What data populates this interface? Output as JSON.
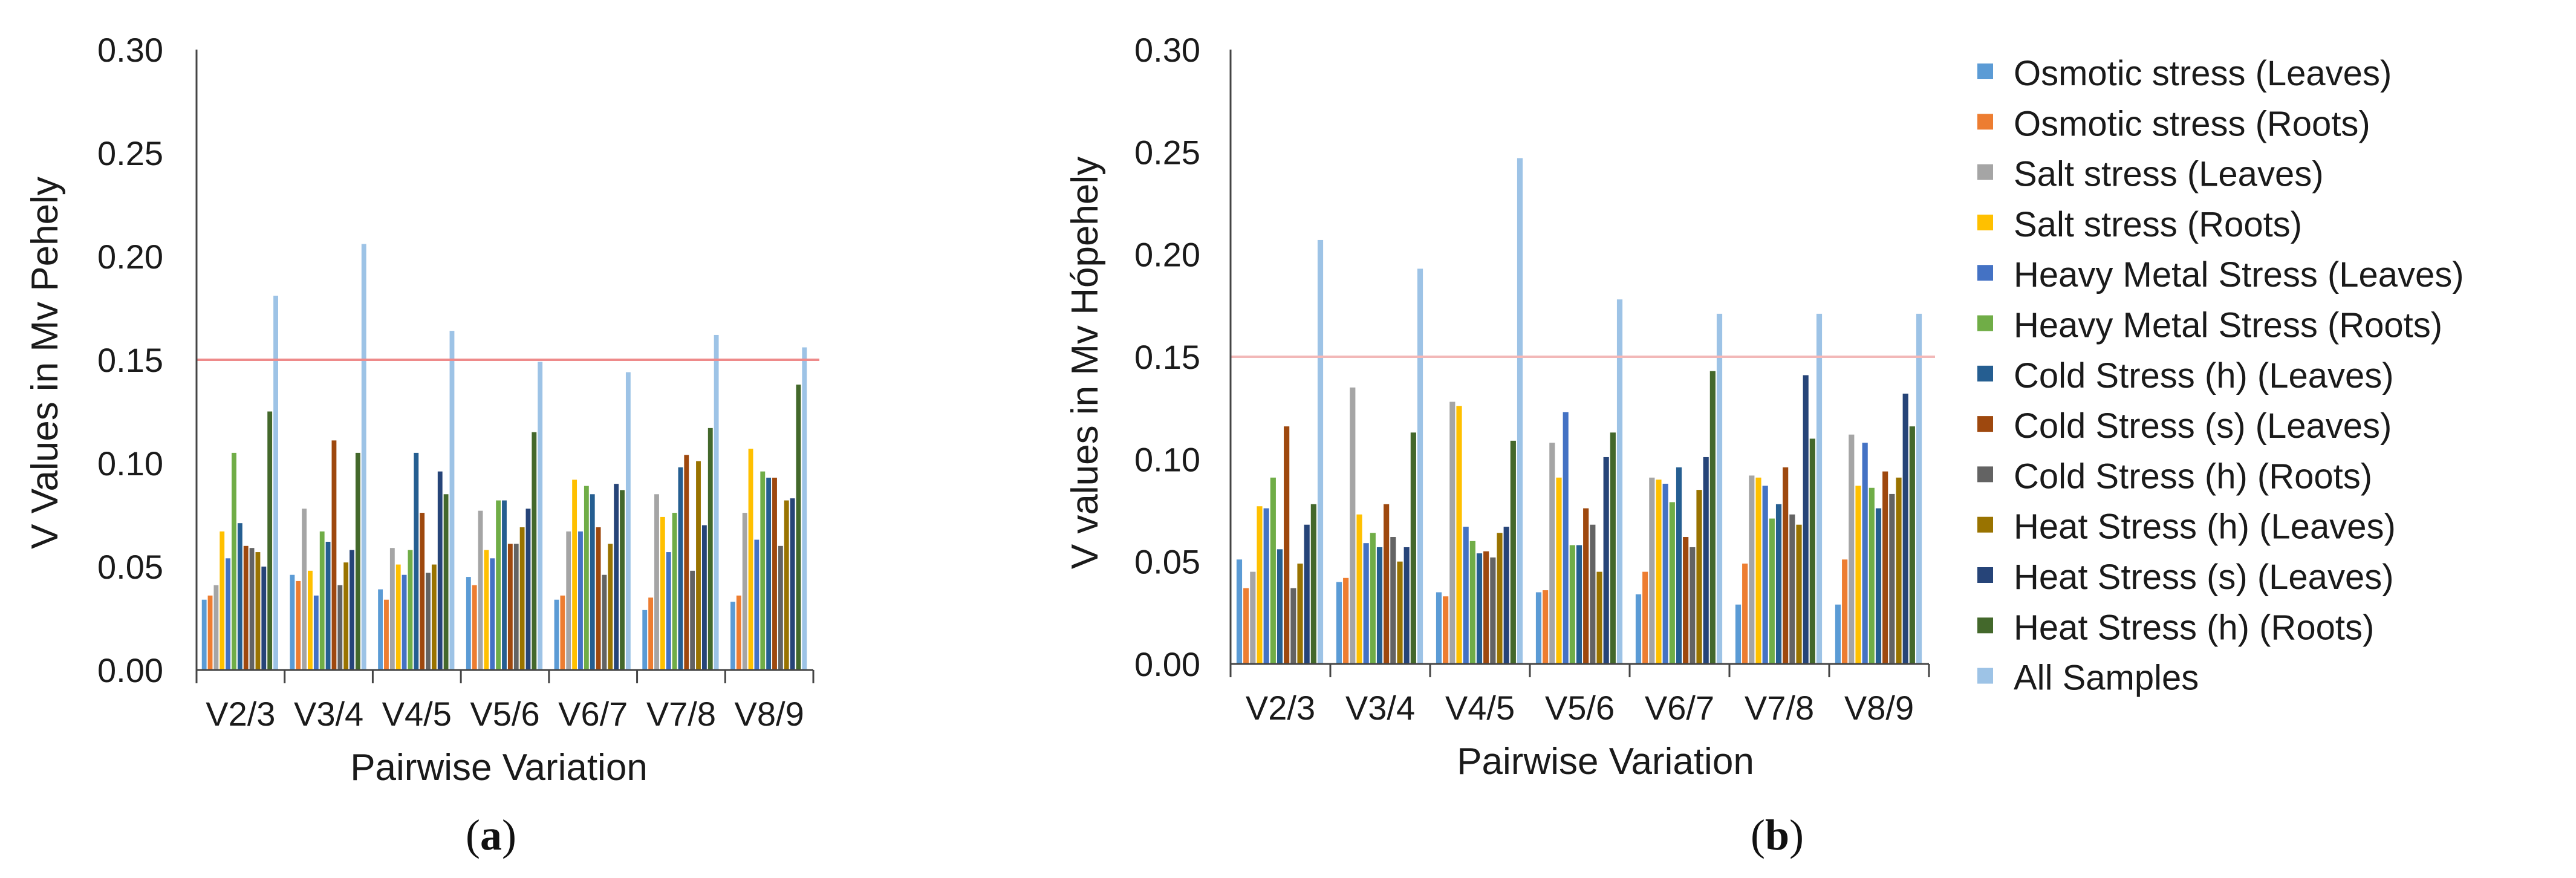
{
  "chart_data": [
    {
      "type": "bar",
      "panel_label": "a",
      "title": "",
      "xlabel": "Pairwise Variation",
      "ylabel": "V Values in Mv Pehely",
      "ylim": [
        0,
        0.3
      ],
      "yticks": [
        "0.00",
        "0.05",
        "0.10",
        "0.15",
        "0.20",
        "0.25",
        "0.30"
      ],
      "ytick_values": [
        0,
        0.05,
        0.1,
        0.15,
        0.2,
        0.25,
        0.3
      ],
      "threshold": 0.15,
      "threshold_color": "#ee8a8a",
      "grid": false,
      "categories": [
        "V2/3",
        "V3/4",
        "V4/5",
        "V5/6",
        "V6/7",
        "V7/8",
        "V8/9"
      ],
      "series": [
        {
          "name": "Osmotic stress (Leaves)",
          "color": "#5b9bd5",
          "values": [
            0.034,
            0.046,
            0.039,
            0.045,
            0.034,
            0.029,
            0.033
          ]
        },
        {
          "name": "Osmotic stress (Roots)",
          "color": "#ed7d31",
          "values": [
            0.036,
            0.043,
            0.034,
            0.041,
            0.036,
            0.035,
            0.036
          ]
        },
        {
          "name": "Salt stress (Leaves)",
          "color": "#a5a5a5",
          "values": [
            0.041,
            0.078,
            0.059,
            0.077,
            0.067,
            0.085,
            0.076
          ]
        },
        {
          "name": "Salt stress (Roots)",
          "color": "#ffc000",
          "values": [
            0.067,
            0.048,
            0.051,
            0.058,
            0.092,
            0.074,
            0.107
          ]
        },
        {
          "name": "Heavy Metal Stress (Leaves)",
          "color": "#4472c4",
          "values": [
            0.054,
            0.036,
            0.046,
            0.054,
            0.067,
            0.057,
            0.063
          ]
        },
        {
          "name": "Heavy Metal Stress (Roots)",
          "color": "#70ad47",
          "values": [
            0.105,
            0.067,
            0.058,
            0.082,
            0.089,
            0.076,
            0.096
          ]
        },
        {
          "name": "Cold Stress (h) (Leaves)",
          "color": "#255e91",
          "values": [
            0.071,
            0.062,
            0.105,
            0.082,
            0.085,
            0.098,
            0.093
          ]
        },
        {
          "name": "Cold Stress (s) (Leaves)",
          "color": "#9e480e",
          "values": [
            0.06,
            0.111,
            0.076,
            0.061,
            0.069,
            0.104,
            0.093
          ]
        },
        {
          "name": "Cold Stress (h) (Roots)",
          "color": "#636363",
          "values": [
            0.059,
            0.041,
            0.047,
            0.061,
            0.046,
            0.048,
            0.06
          ]
        },
        {
          "name": "Heat Stress (h) (Leaves)",
          "color": "#997300",
          "values": [
            0.057,
            0.052,
            0.051,
            0.069,
            0.061,
            0.101,
            0.082
          ]
        },
        {
          "name": "Heat Stress (s) (Leaves)",
          "color": "#264478",
          "values": [
            0.05,
            0.058,
            0.096,
            0.078,
            0.09,
            0.07,
            0.083
          ]
        },
        {
          "name": "Heat Stress (h) (Roots)",
          "color": "#43682b",
          "values": [
            0.125,
            0.105,
            0.085,
            0.115,
            0.087,
            0.117,
            0.138
          ]
        },
        {
          "name": "All Samples",
          "color": "#9dc3e6",
          "values": [
            0.181,
            0.206,
            0.164,
            0.149,
            0.144,
            0.162,
            0.156
          ]
        }
      ]
    },
    {
      "type": "bar",
      "panel_label": "b",
      "title": "",
      "xlabel": "Pairwise Variation",
      "ylabel": "V values in Mv Hópehely",
      "ylim": [
        0,
        0.3
      ],
      "yticks": [
        "0.00",
        "0.05",
        "0.10",
        "0.15",
        "0.20",
        "0.25",
        "0.30"
      ],
      "ytick_values": [
        0,
        0.05,
        0.1,
        0.15,
        0.2,
        0.25,
        0.3
      ],
      "threshold": 0.15,
      "threshold_color": "#f2b8b8",
      "grid": false,
      "categories": [
        "V2/3",
        "V3/4",
        "V4/5",
        "V5/6",
        "V6/7",
        "V7/8",
        "V8/9"
      ],
      "series": [
        {
          "name": "Osmotic stress (Leaves)",
          "color": "#5b9bd5",
          "values": [
            0.051,
            0.04,
            0.035,
            0.035,
            0.034,
            0.029,
            0.029
          ]
        },
        {
          "name": "Osmotic stress (Roots)",
          "color": "#ed7d31",
          "values": [
            0.037,
            0.042,
            0.033,
            0.036,
            0.045,
            0.049,
            0.051
          ]
        },
        {
          "name": "Salt stress (Leaves)",
          "color": "#a5a5a5",
          "values": [
            0.045,
            0.135,
            0.128,
            0.108,
            0.091,
            0.092,
            0.112
          ]
        },
        {
          "name": "Salt stress (Roots)",
          "color": "#ffc000",
          "values": [
            0.077,
            0.073,
            0.126,
            0.091,
            0.09,
            0.091,
            0.087
          ]
        },
        {
          "name": "Heavy Metal Stress (Leaves)",
          "color": "#4472c4",
          "values": [
            0.076,
            0.059,
            0.067,
            0.123,
            0.088,
            0.087,
            0.108
          ]
        },
        {
          "name": "Heavy Metal Stress (Roots)",
          "color": "#70ad47",
          "values": [
            0.091,
            0.064,
            0.06,
            0.058,
            0.079,
            0.071,
            0.086
          ]
        },
        {
          "name": "Cold Stress (h) (Leaves)",
          "color": "#255e91",
          "values": [
            0.056,
            0.057,
            0.054,
            0.058,
            0.096,
            0.078,
            0.076
          ]
        },
        {
          "name": "Cold Stress (s) (Leaves)",
          "color": "#9e480e",
          "values": [
            0.116,
            0.078,
            0.055,
            0.076,
            0.062,
            0.096,
            0.094
          ]
        },
        {
          "name": "Cold Stress (h) (Roots)",
          "color": "#636363",
          "values": [
            0.037,
            0.062,
            0.052,
            0.068,
            0.057,
            0.073,
            0.083
          ]
        },
        {
          "name": "Heat Stress (h) (Leaves)",
          "color": "#997300",
          "values": [
            0.049,
            0.05,
            0.064,
            0.045,
            0.085,
            0.068,
            0.091
          ]
        },
        {
          "name": "Heat Stress (s) (Leaves)",
          "color": "#264478",
          "values": [
            0.068,
            0.057,
            0.067,
            0.101,
            0.101,
            0.141,
            0.132
          ]
        },
        {
          "name": "Heat Stress (h) (Roots)",
          "color": "#43682b",
          "values": [
            0.078,
            0.113,
            0.109,
            0.113,
            0.143,
            0.11,
            0.116
          ]
        },
        {
          "name": "All Samples",
          "color": "#9dc3e6",
          "values": [
            0.207,
            0.193,
            0.247,
            0.178,
            0.171,
            0.171,
            0.171
          ]
        }
      ]
    }
  ],
  "legend": {
    "items": [
      {
        "label": "Osmotic stress (Leaves)",
        "color": "#5b9bd5"
      },
      {
        "label": "Osmotic stress (Roots)",
        "color": "#ed7d31"
      },
      {
        "label": "Salt stress (Leaves)",
        "color": "#a5a5a5"
      },
      {
        "label": "Salt stress (Roots)",
        "color": "#ffc000"
      },
      {
        "label": "Heavy Metal Stress (Leaves)",
        "color": "#4472c4"
      },
      {
        "label": "Heavy Metal Stress (Roots)",
        "color": "#70ad47"
      },
      {
        "label": "Cold Stress (h) (Leaves)",
        "color": "#255e91"
      },
      {
        "label": "Cold Stress (s) (Leaves)",
        "color": "#9e480e"
      },
      {
        "label": "Cold Stress (h) (Roots)",
        "color": "#636363"
      },
      {
        "label": "Heat Stress (h) (Leaves)",
        "color": "#997300"
      },
      {
        "label": "Heat Stress (s) (Leaves)",
        "color": "#264478"
      },
      {
        "label": "Heat Stress (h) (Roots)",
        "color": "#43682b"
      },
      {
        "label": "All Samples",
        "color": "#9dc3e6"
      }
    ]
  }
}
